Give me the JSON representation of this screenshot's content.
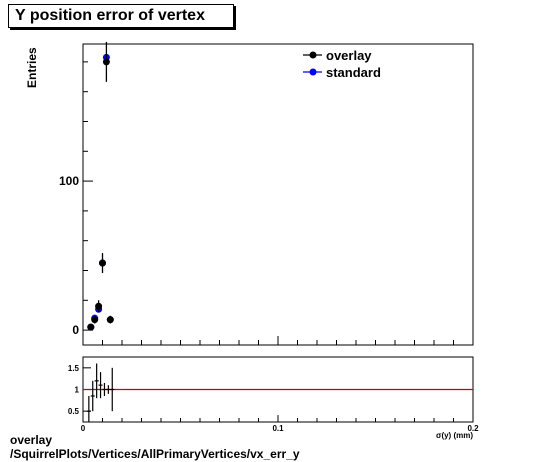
{
  "title": "Y position error of vertex",
  "footer": {
    "line1": "overlay",
    "line2": "/SquirrelPlots/Vertices/AllPrimaryVertices/vx_err_y"
  },
  "colors": {
    "overlay": "#000000",
    "standard": "#0000ff",
    "ratio_line": "#cc0000"
  },
  "chart_data": [
    {
      "type": "scatter",
      "panel": "main",
      "ylabel": "Entries",
      "xlim": [
        0,
        0.2
      ],
      "ylim": [
        -10,
        192
      ],
      "y_ticks": [
        0,
        100
      ],
      "y_tick_labels": [
        "0",
        "100"
      ],
      "legend_position": "top-right",
      "series": [
        {
          "name": "overlay",
          "color": "#000000",
          "points": [
            {
              "x": 0.004,
              "y": 2,
              "err": 1.5
            },
            {
              "x": 0.006,
              "y": 7,
              "err": 2.6
            },
            {
              "x": 0.008,
              "y": 16,
              "err": 4
            },
            {
              "x": 0.01,
              "y": 45,
              "err": 6.7
            },
            {
              "x": 0.012,
              "y": 180,
              "err": 13.4
            },
            {
              "x": 0.014,
              "y": 7,
              "err": 2.6
            }
          ]
        },
        {
          "name": "standard",
          "color": "#0000ff",
          "points": [
            {
              "x": 0.004,
              "y": 2
            },
            {
              "x": 0.006,
              "y": 8
            },
            {
              "x": 0.008,
              "y": 14
            },
            {
              "x": 0.01,
              "y": 45
            },
            {
              "x": 0.012,
              "y": 183
            },
            {
              "x": 0.014,
              "y": 7
            }
          ]
        }
      ]
    },
    {
      "type": "scatter",
      "panel": "ratio",
      "xlabel": "σ(y) (mm)",
      "xlim": [
        0,
        0.2
      ],
      "ylim": [
        0.25,
        1.75
      ],
      "x_ticks": [
        0,
        0.1,
        0.2
      ],
      "x_tick_labels": [
        "0",
        "0.1",
        "0.2"
      ],
      "y_ticks": [
        0.5,
        1,
        1.5
      ],
      "y_tick_labels": [
        "0.5",
        "1",
        "1.5"
      ],
      "reference_line": 1,
      "points": [
        {
          "x": 0.003,
          "y": 0.5,
          "err": 0.35
        },
        {
          "x": 0.005,
          "y": 0.85,
          "err": 0.35
        },
        {
          "x": 0.007,
          "y": 1.2,
          "err": 0.4
        },
        {
          "x": 0.009,
          "y": 1.1,
          "err": 0.3
        },
        {
          "x": 0.011,
          "y": 1.0,
          "err": 0.15
        },
        {
          "x": 0.013,
          "y": 1.0,
          "err": 0.1
        },
        {
          "x": 0.015,
          "y": 1.0,
          "err": 0.5
        }
      ]
    }
  ]
}
